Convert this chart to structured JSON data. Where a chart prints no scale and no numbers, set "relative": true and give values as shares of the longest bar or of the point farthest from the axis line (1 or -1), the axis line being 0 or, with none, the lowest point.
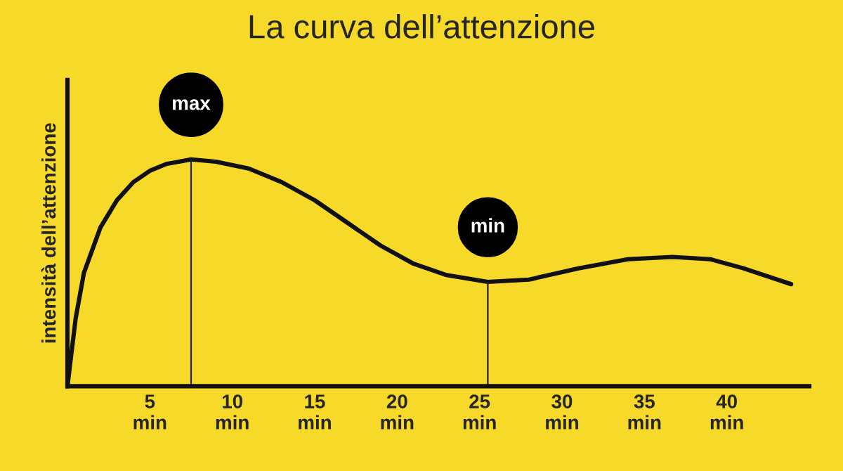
{
  "chart_data": {
    "type": "line",
    "title": "La curva dell’attenzione",
    "ylabel": "intensità dell’attenzione",
    "relative": true,
    "xlim": [
      0,
      45
    ],
    "xticks": [
      {
        "value": 5,
        "label": "5\nmin"
      },
      {
        "value": 10,
        "label": "10\nmin"
      },
      {
        "value": 15,
        "label": "15\nmin"
      },
      {
        "value": 20,
        "label": "20\nmin"
      },
      {
        "value": 25,
        "label": "25\nmin"
      },
      {
        "value": 30,
        "label": "30\nmin"
      },
      {
        "value": 35,
        "label": "35\nmin"
      },
      {
        "value": 40,
        "label": "40\nmin"
      }
    ],
    "series": [
      {
        "color": "#111111",
        "x": [
          0,
          0.5,
          1,
          2,
          3,
          4,
          5,
          6,
          7.5,
          9,
          11,
          13,
          15,
          17,
          19,
          21,
          23,
          25.5,
          28,
          31,
          34,
          36.7,
          39,
          41,
          43.9
        ],
        "values": [
          0,
          0.3,
          0.5,
          0.7,
          0.82,
          0.9,
          0.95,
          0.98,
          1,
          0.99,
          0.96,
          0.9,
          0.82,
          0.72,
          0.62,
          0.54,
          0.49,
          0.46,
          0.47,
          0.52,
          0.56,
          0.57,
          0.56,
          0.52,
          0.45
        ]
      }
    ],
    "ref_lines": [
      {
        "axis": "x",
        "value": 7.5,
        "color": "#222222"
      },
      {
        "axis": "x",
        "value": 25.5,
        "color": "#222222"
      }
    ],
    "annotations": [
      {
        "text": "max",
        "x": 7.5,
        "y": 1
      },
      {
        "text": "min",
        "x": 25.5,
        "y": 0.46
      }
    ],
    "grid": false,
    "legend": false,
    "marker": "none",
    "line_style": "solid"
  }
}
